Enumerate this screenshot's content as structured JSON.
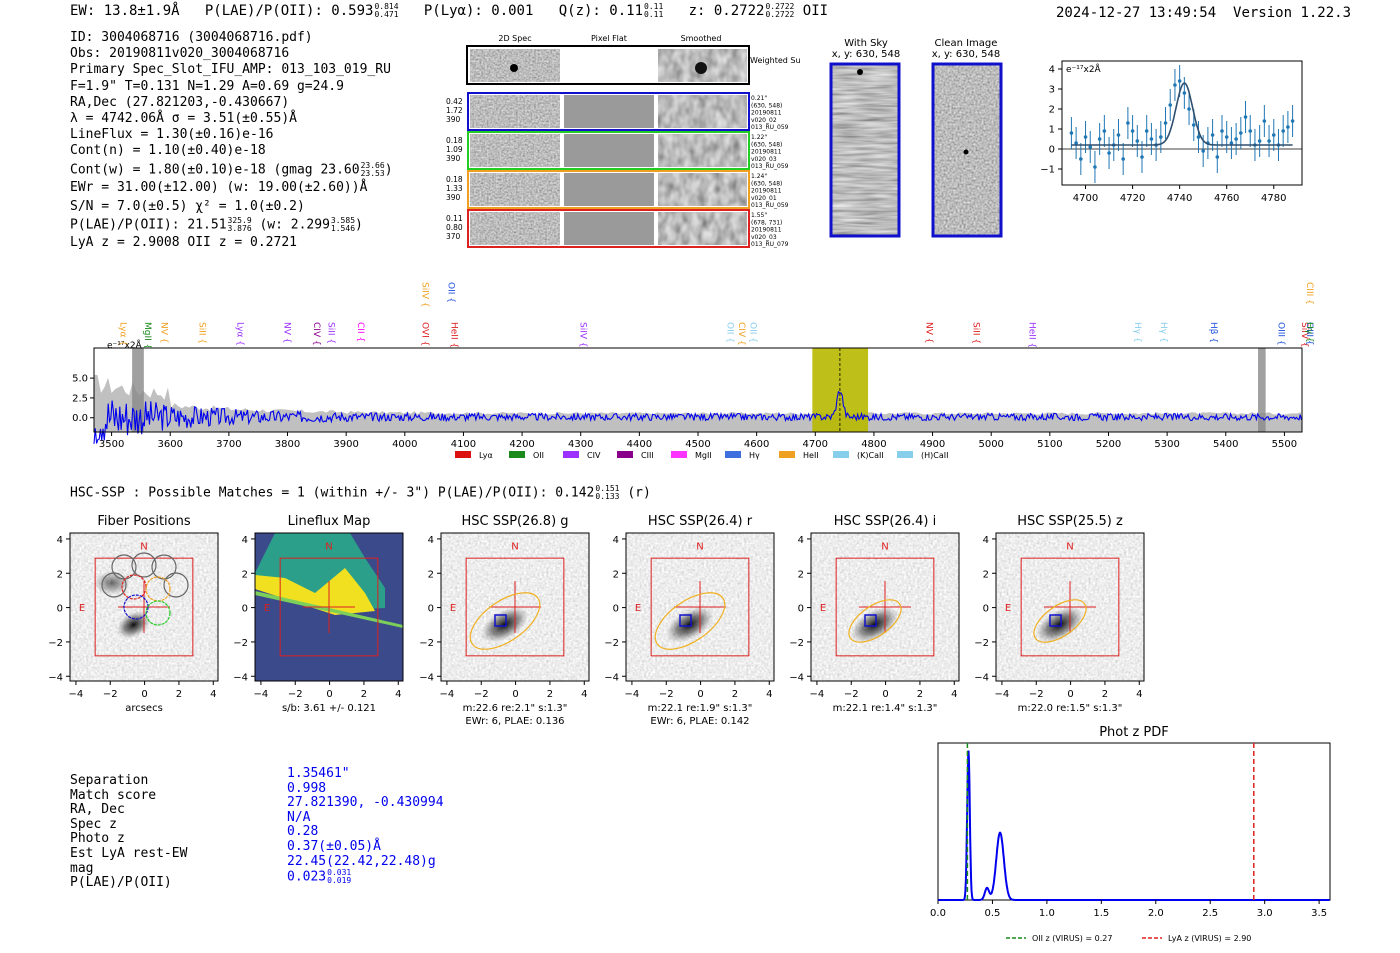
{
  "header": {
    "ew": "EW: 13.8±1.9Å",
    "plae_label": "P(LAE)/P(OII): 0.593",
    "plae_hi": "0.814",
    "plae_lo": "0.471",
    "plya": "P(Lyα): 0.001",
    "qz_label": "Q(z): 0.11",
    "qz_hi": "0.11",
    "qz_lo": "0.11",
    "z_label": "z: 0.2722",
    "z_hi": "0.2722",
    "z_lo": "0.2722",
    "z_line": "OII",
    "datetime": "2024-12-27 13:49:54",
    "version": "Version 1.22.3"
  },
  "info": {
    "id": "ID: 3004068716 (3004068716.pdf)",
    "obs": "Obs: 20190811v020_3004068716",
    "primary": "Primary Spec_Slot_IFU_AMP: 013_103_019_RU",
    "fit": "F=1.9\"  T=0.131  N=1.29  A=0.69  g=24.9",
    "radec": "RA,Dec (27.821203,-0.430667)",
    "lambda": "λ = 4742.06Å  σ = 3.51(±0.55)Å",
    "lineflux": "LineFlux = 1.30(±0.16)e-16",
    "contn": "Cont(n) = 1.10(±0.40)e-18",
    "contw": "Cont(w) = 1.80(±0.10)e-18 (gmag 23.60",
    "contw_hi": "23.66",
    "contw_lo": "23.53",
    "ewr": "EWr = 31.00(±12.00) (w: 19.00(±2.60))Å",
    "sn": "S/N = 7.0(±0.5)  χ² = 1.0(±0.2)",
    "plae": "P(LAE)/P(OII): 21.51",
    "plae_hi": "325.9",
    "plae_lo": "3.876",
    "plae_w": "(w: 2.299",
    "plae_w_hi": "3.585",
    "plae_w_lo": "1.546",
    "lya_z": "LyA z = 2.9008   OII z = 0.2721"
  },
  "cutouts": {
    "col_titles": [
      "2D Spec",
      "Pixel Flat",
      "Smoothed"
    ],
    "weighted_sum": "Weighted Sum",
    "rows": [
      {
        "left": [
          "0.42",
          "1.72",
          "390"
        ],
        "right": [
          "0.21\"",
          "(630, 548)",
          "20190811",
          "v020_02",
          "013_RU_059"
        ],
        "color": "#1010cc"
      },
      {
        "left": [
          "0.18",
          "1.09",
          "390"
        ],
        "right": [
          "1.22\"",
          "(630, 548)",
          "20190811",
          "v020_03",
          "013_RU_059"
        ],
        "color": "#22cc22"
      },
      {
        "left": [
          "0.18",
          "1.33",
          "390"
        ],
        "right": [
          "1.24\"",
          "(630, 548)",
          "20190811",
          "v020_01",
          "013_RU_059"
        ],
        "color": "#f0a020"
      },
      {
        "left": [
          "0.11",
          "0.80",
          "370"
        ],
        "right": [
          "1.55\"",
          "(678, 731)",
          "20190811",
          "v020_03",
          "013_RU_079"
        ],
        "color": "#dd2020"
      }
    ],
    "with_sky_title": "With Sky",
    "with_sky_coords": "x, y: 630, 548",
    "clean_title": "Clean Image",
    "clean_coords": "x, y: 630, 548"
  },
  "hsc": {
    "summary": "HSC-SSP : Possible Matches = 1 (within +/- 3\")  P(LAE)/P(OII): 0.142",
    "summary_hi": "0.151",
    "summary_lo": "0.133",
    "summary_band": "(r)",
    "panels": [
      {
        "title": "Fiber Positions",
        "cap1": "arcsecs",
        "cap2": ""
      },
      {
        "title": "Lineflux Map",
        "cap1": "s/b: 3.61 +/- 0.121",
        "cap2": ""
      },
      {
        "title": "HSC SSP(26.8) g",
        "cap1": "m:22.6  re:2.1\"  s:1.3\"",
        "cap2": "EWr: 6, PLAE: 0.136"
      },
      {
        "title": "HSC SSP(26.4) r",
        "cap1": "m:22.1  re:1.9\"  s:1.3\"",
        "cap2": "EWr: 6, PLAE: 0.142"
      },
      {
        "title": "HSC SSP(26.4) i",
        "cap1": "m:22.1  re:1.4\"  s:1.3\"",
        "cap2": ""
      },
      {
        "title": "HSC SSP(25.5) z",
        "cap1": "m:22.0  re:1.5\"  s:1.3\"",
        "cap2": ""
      }
    ],
    "n_label": "N",
    "e_label": "E",
    "ticks": [
      "4",
      "2",
      "0",
      "−2",
      "−4"
    ],
    "xticks": [
      "−4",
      "−2",
      "0",
      "2",
      "4"
    ]
  },
  "match": {
    "labels": [
      "Separation",
      "Match score",
      "RA, Dec",
      "Spec z",
      "Photo z",
      "Est LyA rest-EW",
      "mag",
      "P(LAE)/P(OII)"
    ],
    "values": [
      "1.35461\"",
      "0.998",
      "27.821390, -0.430994",
      "N/A",
      "0.28",
      "0.37(±0.05)Å",
      "22.45(22.42,22.48)g",
      "0.023"
    ],
    "plae_hi": "0.031",
    "plae_lo": "0.019"
  },
  "colors": {
    "spectrum": "#0000ee",
    "noise": "#c0c0c0",
    "highlight": "#b8b800",
    "red": "#dd2020",
    "line_fit": "#2f4f6f",
    "points": "#1f77b4"
  },
  "chart_data": [
    {
      "type": "scatter",
      "name": "line-fit",
      "ylabel": "e⁻¹⁷x2Å",
      "xlim": [
        4690,
        4792
      ],
      "ylim": [
        -1.8,
        4.4
      ],
      "xticks": [
        4700,
        4720,
        4740,
        4760,
        4780
      ],
      "yticks": [
        -1,
        0,
        1,
        2,
        3,
        4
      ],
      "x": [
        4694,
        4696,
        4698,
        4700,
        4702,
        4704,
        4706,
        4708,
        4710,
        4712,
        4714,
        4716,
        4718,
        4720,
        4722,
        4724,
        4726,
        4728,
        4730,
        4732,
        4734,
        4736,
        4738,
        4740,
        4742,
        4744,
        4746,
        4748,
        4750,
        4752,
        4754,
        4756,
        4758,
        4760,
        4762,
        4764,
        4766,
        4768,
        4770,
        4772,
        4774,
        4776,
        4778,
        4780,
        4782,
        4784,
        4786,
        4788
      ],
      "y": [
        0.8,
        0.3,
        -0.5,
        0.6,
        0.1,
        -0.9,
        0.5,
        0.9,
        -0.2,
        0.2,
        0.7,
        -0.5,
        1.3,
        0.9,
        0.4,
        -0.4,
        0.9,
        0.5,
        0.2,
        0.6,
        1.3,
        2.2,
        3.2,
        3.4,
        2.8,
        2.0,
        1.2,
        0.6,
        -0.1,
        0.3,
        0.7,
        -0.4,
        0.9,
        0.6,
        0.3,
        0.5,
        0.8,
        1.6,
        0.9,
        0.2,
        0.4,
        1.4,
        0.4,
        0.7,
        0.2,
        0.9,
        1.1,
        1.4
      ],
      "err": 0.8,
      "model": {
        "center": 4742,
        "sigma": 3.5,
        "amp": 3.1,
        "cont": 0.2
      }
    },
    {
      "type": "line",
      "name": "full-spectrum",
      "ylabel": "e⁻¹⁷x2Å",
      "xlim": [
        3470,
        5530
      ],
      "ylim": [
        -1.8,
        8.8
      ],
      "xticks": [
        3500,
        3600,
        3700,
        3800,
        3900,
        4000,
        4100,
        4200,
        4300,
        4400,
        4500,
        4600,
        4700,
        4800,
        4900,
        5000,
        5100,
        5200,
        5300,
        5400,
        5500
      ],
      "yticks": [
        0.0,
        2.5,
        5.0
      ],
      "peak": {
        "center": 4742,
        "amp": 3.4
      },
      "highlight_x": [
        4695,
        4790
      ],
      "marker_x": 4742,
      "grey_bands": [
        [
          3535,
          3555
        ],
        [
          5455,
          5468
        ]
      ],
      "lines": [
        {
          "name": "Lyα",
          "x": 3520,
          "color": "#f0a020",
          "row": 0
        },
        {
          "name": "MgII",
          "x": 3562,
          "color": "#1a8a1a",
          "row": 0
        },
        {
          "name": "NV",
          "x": 3590,
          "color": "#f0a020",
          "row": 0
        },
        {
          "name": "SiII",
          "x": 3655,
          "color": "#f0a020",
          "row": 0
        },
        {
          "name": "Lyα",
          "x": 3720,
          "color": "#9b30ff",
          "row": 0
        },
        {
          "name": "NV",
          "x": 3800,
          "color": "#9b30ff",
          "row": 0
        },
        {
          "name": "CIV",
          "x": 3850,
          "color": "#8b008b",
          "row": 0
        },
        {
          "name": "SiII",
          "x": 3875,
          "color": "#9b30ff",
          "row": 0
        },
        {
          "name": "CII",
          "x": 3925,
          "color": "#ff00ff",
          "row": 0
        },
        {
          "name": "OVI",
          "x": 4035,
          "color": "#dd2020",
          "row": 0
        },
        {
          "name": "HeII",
          "x": 4085,
          "color": "#dd2020",
          "row": 0
        },
        {
          "name": "SiIV",
          "x": 4035,
          "color": "#f0a020",
          "row": 1
        },
        {
          "name": "OII",
          "x": 4080,
          "color": "#1f4fdf",
          "row": 1
        },
        {
          "name": "SiIV",
          "x": 4305,
          "color": "#9b30ff",
          "row": 0
        },
        {
          "name": "OII",
          "x": 4555,
          "color": "#87ceeb",
          "row": 0
        },
        {
          "name": "CIV",
          "x": 4575,
          "color": "#f0a020",
          "row": 0
        },
        {
          "name": "OII",
          "x": 4595,
          "color": "#87ceeb",
          "row": 0
        },
        {
          "name": "NV",
          "x": 4895,
          "color": "#dd2020",
          "row": 0
        },
        {
          "name": "SiII",
          "x": 4975,
          "color": "#dd2020",
          "row": 0
        },
        {
          "name": "HeII",
          "x": 5070,
          "color": "#9b30ff",
          "row": 0
        },
        {
          "name": "Hγ",
          "x": 5250,
          "color": "#87ceeb",
          "row": 0
        },
        {
          "name": "Hγ",
          "x": 5295,
          "color": "#87ceeb",
          "row": 0
        },
        {
          "name": "Hβ",
          "x": 5380,
          "color": "#1f4fdf",
          "row": 0
        },
        {
          "name": "OIII",
          "x": 5495,
          "color": "#1f4fdf",
          "row": 0
        },
        {
          "name": "SiIV",
          "x": 5535,
          "color": "#dd2020",
          "row": 0
        },
        {
          "name": "OIII",
          "x": 5565,
          "color": "#1f4fdf",
          "row": 0
        },
        {
          "name": "Hγ",
          "x": 5620,
          "color": "#1a8a1a",
          "row": 0
        },
        {
          "name": "CIII",
          "x": 5610,
          "color": "#f0a020",
          "row": 1
        }
      ],
      "legend": [
        {
          "name": "Lyα",
          "color": "#dd1010"
        },
        {
          "name": "OII",
          "color": "#1a8a1a"
        },
        {
          "name": "CIV",
          "color": "#9b30ff"
        },
        {
          "name": "CIII",
          "color": "#8b008b"
        },
        {
          "name": "MgII",
          "color": "#ff33ff"
        },
        {
          "name": "Hγ",
          "color": "#3f6fdf"
        },
        {
          "name": "HeII",
          "color": "#f0a020"
        },
        {
          "name": "(K)CaII",
          "color": "#87ceeb"
        },
        {
          "name": "(H)CaII",
          "color": "#87ceeb"
        }
      ]
    },
    {
      "type": "line",
      "name": "photz-pdf",
      "title": "Phot z PDF",
      "xlim": [
        0.0,
        3.6
      ],
      "ylim": [
        0,
        1.05
      ],
      "xticks": [
        0.0,
        0.5,
        1.0,
        1.5,
        2.0,
        2.5,
        3.0,
        3.5
      ],
      "components": [
        {
          "mu": 0.28,
          "sigma": 0.012,
          "amp": 1.0
        },
        {
          "mu": 0.45,
          "sigma": 0.02,
          "amp": 0.08
        },
        {
          "mu": 0.57,
          "sigma": 0.035,
          "amp": 0.45
        }
      ],
      "vlines": [
        {
          "x": 0.27,
          "color": "#1a8a1a",
          "label": "OII z (VIRUS) = 0.27"
        },
        {
          "x": 2.9,
          "color": "#dd2020",
          "label": "LyA z (VIRUS) = 2.90"
        }
      ]
    }
  ]
}
